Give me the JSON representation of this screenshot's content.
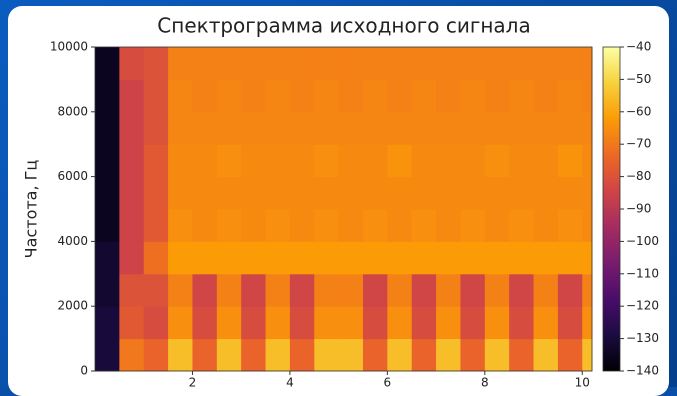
{
  "chart_data": {
    "type": "heatmap",
    "title": "Спектрограмма исходного сигнала",
    "ylabel": "Частота, Гц",
    "x": [
      0,
      0.5,
      1,
      1.5,
      2,
      2.5,
      3,
      3.5,
      4,
      4.5,
      5,
      5.5,
      6,
      6.5,
      7,
      7.5,
      8,
      8.5,
      9,
      9.5,
      10,
      10.2
    ],
    "y": [
      0,
      1000,
      2000,
      3000,
      4000,
      5000,
      6000,
      7000,
      8000,
      9000,
      10000
    ],
    "z": [
      [
        -130,
        -70,
        -75,
        -55,
        -75,
        -55,
        -75,
        -55,
        -75,
        -55,
        -55,
        -75,
        -55,
        -75,
        -55,
        -75,
        -55,
        -75,
        -55,
        -75,
        -55
      ],
      [
        -130,
        -78,
        -82,
        -65,
        -82,
        -65,
        -82,
        -65,
        -82,
        -65,
        -65,
        -82,
        -65,
        -82,
        -65,
        -82,
        -65,
        -82,
        -65,
        -82,
        -65
      ],
      [
        -132,
        -80,
        -80,
        -68,
        -84,
        -68,
        -84,
        -68,
        -84,
        -68,
        -68,
        -84,
        -68,
        -84,
        -68,
        -84,
        -68,
        -84,
        -68,
        -84,
        -68
      ],
      [
        -132,
        -85,
        -72,
        -62,
        -62,
        -62,
        -62,
        -62,
        -62,
        -62,
        -62,
        -62,
        -62,
        -62,
        -62,
        -62,
        -62,
        -62,
        -62,
        -62,
        -62
      ],
      [
        -135,
        -85,
        -78,
        -65,
        -66,
        -65,
        -66,
        -65,
        -66,
        -65,
        -66,
        -65,
        -66,
        -65,
        -66,
        -65,
        -66,
        -65,
        -66,
        -65,
        -66
      ],
      [
        -135,
        -85,
        -78,
        -66,
        -66,
        -66,
        -66,
        -66,
        -66,
        -66,
        -66,
        -66,
        -66,
        -66,
        -66,
        -66,
        -66,
        -66,
        -66,
        -66,
        -66
      ],
      [
        -135,
        -85,
        -78,
        -66,
        -66,
        -65,
        -66,
        -66,
        -66,
        -65,
        -66,
        -66,
        -64,
        -66,
        -66,
        -66,
        -65,
        -66,
        -66,
        -64,
        -66
      ],
      [
        -135,
        -85,
        -80,
        -67,
        -67,
        -67,
        -67,
        -67,
        -67,
        -67,
        -67,
        -67,
        -67,
        -67,
        -67,
        -67,
        -67,
        -67,
        -67,
        -67,
        -67
      ],
      [
        -135,
        -85,
        -80,
        -67,
        -68,
        -67,
        -68,
        -67,
        -68,
        -67,
        -68,
        -67,
        -68,
        -67,
        -68,
        -67,
        -68,
        -67,
        -68,
        -67,
        -68
      ],
      [
        -135,
        -82,
        -80,
        -68,
        -68,
        -68,
        -68,
        -68,
        -68,
        -68,
        -68,
        -68,
        -68,
        -68,
        -68,
        -68,
        -68,
        -68,
        -68,
        -68,
        -68
      ]
    ],
    "xlim": [
      0,
      10.2
    ],
    "xticks": [
      2,
      4,
      6,
      8,
      10
    ],
    "ylim": [
      0,
      10000
    ],
    "yticks": [
      0,
      2000,
      4000,
      6000,
      8000,
      10000
    ],
    "clim": [
      -140,
      -40
    ],
    "cticks": [
      {
        "value": -40,
        "label": "−40"
      },
      {
        "value": -50,
        "label": "−50"
      },
      {
        "value": -60,
        "label": "−60"
      },
      {
        "value": -70,
        "label": "−70"
      },
      {
        "value": -80,
        "label": "−80"
      },
      {
        "value": -90,
        "label": "−90"
      },
      {
        "value": -100,
        "label": "−100"
      },
      {
        "value": -110,
        "label": "−110"
      },
      {
        "value": -120,
        "label": "−120"
      },
      {
        "value": -130,
        "label": "−130"
      },
      {
        "value": -140,
        "label": "−140"
      }
    ],
    "colormap": [
      "#000004",
      "#1b0c41",
      "#4a0c6b",
      "#781c6d",
      "#a52c60",
      "#cf4446",
      "#ed6925",
      "#fb9b06",
      "#f7d13d",
      "#fcffa4"
    ]
  }
}
